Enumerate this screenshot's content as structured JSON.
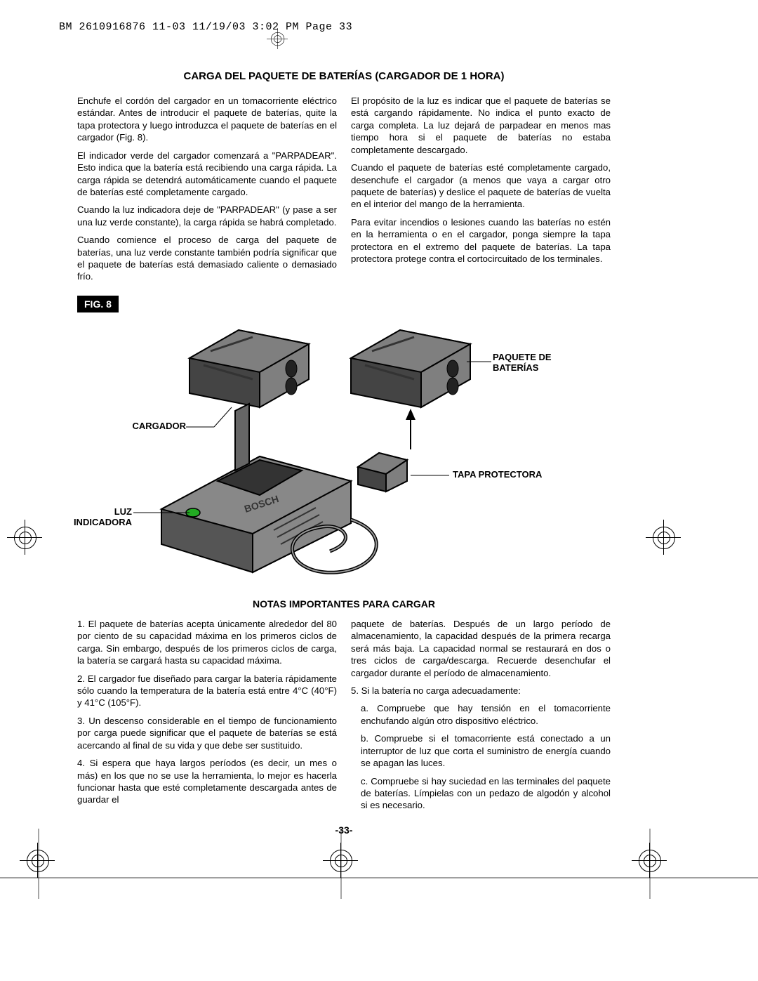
{
  "header": "BM 2610916876 11-03  11/19/03  3:02 PM  Page 33",
  "title": "CARGA DEL PAQUETE DE BATERÍAS (CARGADOR DE 1 HORA)",
  "sec1": {
    "left": {
      "p1": "Enchufe el cordón del cargador en un tomacorriente eléctrico estándar. Antes de introducir el paquete de baterías, quite la tapa protectora y luego introduzca el paquete de baterías en el cargador (Fig. 8).",
      "p2": "El indicador verde del cargador comenzará a \"PARPADEAR\". Esto indica que la batería está recibiendo una carga rápida. La carga rápida se detendrá automáticamente cuando el paquete de baterías esté completamente cargado.",
      "p3": "Cuando la luz indicadora deje de \"PARPADEAR\" (y pase a ser una luz verde constante), la carga rápida se habrá completado.",
      "p4": "Cuando comience el proceso de carga del paquete de baterías, una luz verde constante también podría significar que el paquete de baterías está demasiado caliente o demasiado frío."
    },
    "right": {
      "p1": "El propósito de la luz es indicar que el paquete de baterías se está cargando rápidamente. No indica el punto exacto de carga completa. La luz dejará de parpadear en menos mas tiempo hora si el paquete de baterías no estaba completamente descargado.",
      "p2": "Cuando el paquete de baterías esté completamente cargado, desenchufe el cargador (a menos que vaya a cargar otro paquete de baterías) y deslice el paquete de baterías de vuelta en el interior del mango de la herramienta.",
      "p3": "Para evitar incendios o lesiones cuando las baterías no estén en la herramienta o en el cargador, ponga siempre la tapa protectora en el extremo del paquete de baterías. La tapa protectora protege contra el cortocircuitado de los terminales."
    }
  },
  "fig": {
    "label": "FIG. 8",
    "callouts": {
      "paquete": "PAQUETE DE\nBATERÍAS",
      "cargador": "CARGADOR",
      "tapa": "TAPA PROTECTORA",
      "luz": "LUZ\nINDICADORA"
    }
  },
  "subtitle": "NOTAS IMPORTANTES PARA CARGAR",
  "sec2": {
    "left": {
      "p1": "1. El paquete de baterías acepta únicamente alrededor del 80 por ciento de su capacidad máxima en los primeros ciclos de carga. Sin embargo, después de los primeros ciclos de carga, la batería se cargará hasta su capacidad máxima.",
      "p2": "2. El cargador fue diseñado para cargar la  batería rápidamente sólo cuando la temperatura de la batería está entre 4°C (40°F) y 41°C (105°F).",
      "p3": "3. Un descenso considerable en el tiempo de funcionamiento por carga puede significar que el paquete de baterías se está acercando al final de su vida y que debe ser sustituido.",
      "p4": "4. Si espera que haya largos períodos (es decir, un mes o más) en los que no se use la herramienta, lo mejor es hacerla funcionar hasta que esté completamente descargada antes de guardar el"
    },
    "right": {
      "p1": "paquete de baterías.  Después de un largo período de almacenamiento, la capacidad después de la primera recarga será más baja. La capacidad normal se restaurará en dos o tres ciclos de carga/descarga. Recuerde desenchufar el cargador durante el período de almacenamiento.",
      "p2": "5. Si la batería no carga adecuadamente:",
      "p3": "a. Compruebe que hay tensión en el tomacorriente enchufando algún otro dispositivo eléctrico.",
      "p4": "b. Compruebe si el tomacorriente está conectado a un interruptor de luz que corta el suministro de energía cuando se apagan las luces.",
      "p5": "c. Compruebe si hay suciedad en las  terminales del paquete de baterías. Límpielas con un pedazo de algodón y alcohol si es necesario."
    }
  },
  "pageNum": "-33-"
}
